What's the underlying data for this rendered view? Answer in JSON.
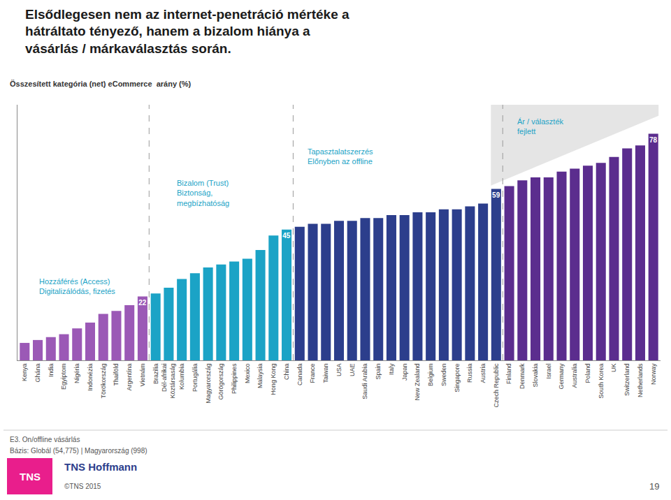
{
  "chart_data": {
    "type": "bar",
    "title": "Elsődlegesen nem az internet-penetráció mértéke a\nhátráltato tényező, hanem a bizalom hiánya a\nvásárlás / márkaválasztás során.",
    "subtitle": "Összesített kategória (net) eCommerce  arány (%)",
    "categories": [
      "Kenya",
      "Ghána",
      "India",
      "Egyiptom",
      "Nigéria",
      "Indonézia",
      "Törökország",
      "Thaiföld",
      "Argentína",
      "Vietnám",
      "Brazilia",
      "Dél-afrikai\nKöztársaság",
      "Kolumbia",
      "Portugália",
      "Magyarország",
      "Görögország",
      "Philippines",
      "Mexico",
      "Malaysia",
      "Hong Kong",
      "China",
      "Canada",
      "France",
      "Taiwan",
      "USA",
      "UAE",
      "Saudi Arabia",
      "Spain",
      "Italy",
      "Japan",
      "New Zealand",
      "Belgium",
      "Sweden",
      "Singapore",
      "Russia",
      "Austria",
      "Czech Republic",
      "Finland",
      "Denmark",
      "Slovakia",
      "Israel",
      "Germany",
      "Australia",
      "Poland",
      "South Korea",
      "UK",
      "Switzerland",
      "Netherlands",
      "Norway"
    ],
    "values": [
      6,
      7,
      8,
      9,
      11,
      13,
      16,
      17,
      19,
      22,
      23,
      25,
      28,
      30,
      32,
      33,
      34,
      35,
      38,
      43,
      45,
      46,
      47,
      47,
      48,
      48,
      49,
      49,
      50,
      50,
      51,
      51,
      52,
      52,
      53,
      54,
      59,
      60,
      62,
      63,
      63,
      65,
      66,
      67,
      68,
      70,
      73,
      74,
      78
    ],
    "colors": [
      "#9B59B6",
      "#9B59B6",
      "#9B59B6",
      "#9B59B6",
      "#9B59B6",
      "#9B59B6",
      "#9B59B6",
      "#9B59B6",
      "#9B59B6",
      "#9B59B6",
      "#1BA3C6",
      "#1BA3C6",
      "#1BA3C6",
      "#1BA3C6",
      "#1BA3C6",
      "#1BA3C6",
      "#1BA3C6",
      "#1BA3C6",
      "#1BA3C6",
      "#1BA3C6",
      "#1BA3C6",
      "#2C3E8C",
      "#2C3E8C",
      "#2C3E8C",
      "#2C3E8C",
      "#2C3E8C",
      "#2C3E8C",
      "#2C3E8C",
      "#2C3E8C",
      "#2C3E8C",
      "#2C3E8C",
      "#2C3E8C",
      "#2C3E8C",
      "#2C3E8C",
      "#2C3E8C",
      "#2C3E8C",
      "#2C3E8C",
      "#5B2D8E",
      "#5B2D8E",
      "#5B2D8E",
      "#5B2D8E",
      "#5B2D8E",
      "#5B2D8E",
      "#5B2D8E",
      "#5B2D8E",
      "#5B2D8E",
      "#5B2D8E",
      "#5B2D8E",
      "#5B2D8E"
    ],
    "data_labels": true,
    "value_labels": [
      null,
      null,
      null,
      null,
      null,
      null,
      null,
      null,
      null,
      "22",
      null,
      null,
      null,
      null,
      null,
      null,
      null,
      null,
      null,
      null,
      "45",
      null,
      null,
      null,
      null,
      null,
      null,
      null,
      null,
      null,
      null,
      null,
      null,
      null,
      null,
      null,
      "59",
      null,
      null,
      null,
      null,
      null,
      null,
      null,
      null,
      null,
      null,
      null,
      "78"
    ],
    "ylim": [
      0,
      88
    ],
    "tick_labels": "x",
    "grid": false,
    "annotations": [
      {
        "text": "Hozzáférés (Access)\nDigitalizálódás, fizetés",
        "color": "#1BA3C6"
      },
      {
        "text": "Bizalom (Trust)\nBiztonság,\nmegbízhatóság",
        "color": "#1BA3C6"
      },
      {
        "text": "Tapasztalatszerzés\nElőnyben az offline",
        "color": "#1BA3C6"
      },
      {
        "text": "Ár / választék\nfejlett",
        "color": "#1BA3C6"
      }
    ],
    "footnotes": [
      "E3. On/offline vásárlás",
      "Bázis: Globál (54,775) | Magyarország (998)",
      "TNS",
      "TNS Hoffmann",
      "©TNS 2015",
      "19"
    ]
  }
}
